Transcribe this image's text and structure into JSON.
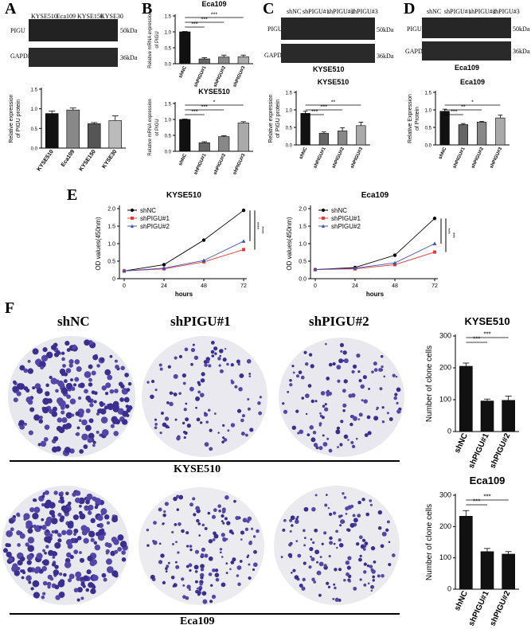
{
  "panels": {
    "A": "A",
    "B": "B",
    "C": "C",
    "D": "D",
    "E": "E",
    "F": "F"
  },
  "A": {
    "lanes": [
      "KYSE510",
      "Eca109",
      "KYSE150",
      "KYSE30"
    ],
    "rows": [
      {
        "name": "PIGU",
        "size": "50kDa"
      },
      {
        "name": "GAPDH",
        "size": "36kDa"
      }
    ]
  },
  "C": {
    "lanes": [
      "shNC",
      "shPIGU#1",
      "shPIGU#2",
      "shPIGU#3"
    ],
    "rows": [
      {
        "name": "PIGU",
        "size": "50kDa"
      },
      {
        "name": "GAPDH",
        "size": "36kDa"
      }
    ],
    "cell": "KYSE510"
  },
  "D": {
    "lanes": [
      "shNC",
      "shPIGU#1",
      "shPIGU#2",
      "shPIGU#3"
    ],
    "rows": [
      {
        "name": "PIGU",
        "size": "50kDa"
      },
      {
        "name": "GAPDH",
        "size": "36kDa"
      }
    ],
    "cell": "Eca109"
  },
  "F": {
    "cols": [
      "shNC",
      "shPIGU#1",
      "shPIGU#2"
    ],
    "rows": [
      "KYSE510",
      "Eca109"
    ]
  },
  "chart_data": [
    {
      "id": "A",
      "type": "bar",
      "categories": [
        "KYSE510",
        "Eca109",
        "KYSE150",
        "KYSE30"
      ],
      "values": [
        0.88,
        0.97,
        0.62,
        0.7
      ],
      "errors": [
        0.06,
        0.05,
        0.03,
        0.12
      ],
      "ylabel": "Relative expression of PIGU protein",
      "ylim": [
        0,
        1.5
      ],
      "yticks": [
        0,
        0.5,
        1.0,
        1.5
      ],
      "colors": [
        "#111111",
        "#888888",
        "#555555",
        "#bbbbbb"
      ]
    },
    {
      "id": "B1",
      "type": "bar",
      "title": "Eca109",
      "categories": [
        "shNC",
        "shPIGU#1",
        "shPIGU#2",
        "shPIGU#3"
      ],
      "values": [
        1.0,
        0.15,
        0.21,
        0.22
      ],
      "errors": [
        0.01,
        0.04,
        0.06,
        0.05
      ],
      "ylabel": "Relative mRNA expression of PIGU",
      "ylim": [
        0,
        1.5
      ],
      "yticks": [
        0,
        0.5,
        1.0,
        1.5
      ],
      "colors": [
        "#111111",
        "#666666",
        "#888888",
        "#aaaaaa"
      ],
      "sig": [
        "***",
        "***",
        "***"
      ]
    },
    {
      "id": "B2",
      "type": "bar",
      "title": "KYSE510",
      "categories": [
        "shNC",
        "shPIGU#1",
        "shPIGU#2",
        "shPIGU#3"
      ],
      "values": [
        1.0,
        0.27,
        0.46,
        0.89
      ],
      "errors": [
        0.01,
        0.03,
        0.03,
        0.04
      ],
      "ylabel": "Relative mRNA expression of PIGU",
      "ylim": [
        0,
        1.5
      ],
      "yticks": [
        0,
        0.5,
        1.0,
        1.5
      ],
      "colors": [
        "#111111",
        "#666666",
        "#888888",
        "#aaaaaa"
      ],
      "sig": [
        "***",
        "***",
        "*"
      ]
    },
    {
      "id": "C",
      "type": "bar",
      "title": "KYSE510",
      "categories": [
        "shNC",
        "shPIGU#1",
        "shPIGU#2",
        "shPIGU#3"
      ],
      "values": [
        0.9,
        0.33,
        0.4,
        0.55
      ],
      "errors": [
        0.06,
        0.04,
        0.09,
        0.1
      ],
      "ylabel": "Relative expression of PIGU protein",
      "ylim": [
        0,
        1.5
      ],
      "yticks": [
        0,
        0.5,
        1.0,
        1.5
      ],
      "colors": [
        "#111111",
        "#666666",
        "#888888",
        "#aaaaaa"
      ],
      "sig": [
        "***",
        "***",
        "**"
      ]
    },
    {
      "id": "D",
      "type": "bar",
      "title": "Eca109",
      "categories": [
        "shNC",
        "shPIGU#1",
        "shPIGU#2",
        "shPIGU#3"
      ],
      "values": [
        0.96,
        0.58,
        0.65,
        0.77
      ],
      "errors": [
        0.06,
        0.03,
        0.02,
        0.08
      ],
      "ylabel": "Relative Expression of Protein",
      "ylim": [
        0,
        1.5
      ],
      "yticks": [
        0,
        0.5,
        1.0,
        1.5
      ],
      "colors": [
        "#111111",
        "#666666",
        "#888888",
        "#aaaaaa"
      ],
      "sig": [
        "***",
        "**",
        "*"
      ]
    },
    {
      "id": "E1",
      "type": "line",
      "title": "KYSE510",
      "x": [
        0,
        24,
        48,
        72
      ],
      "xlabel": "hours",
      "ylabel": "OD values(450nm)",
      "ylim": [
        0,
        2.0
      ],
      "yticks": [
        0,
        0.5,
        1.0,
        1.5,
        2.0
      ],
      "ytick_labels": [
        "0",
        "0.5",
        "1.0",
        "1.5",
        "2.0"
      ],
      "series": [
        {
          "name": "shNC",
          "values": [
            0.22,
            0.4,
            1.1,
            1.95
          ],
          "color": "#000000",
          "marker": "circle"
        },
        {
          "name": "shPIGU#1",
          "values": [
            0.22,
            0.28,
            0.48,
            0.83
          ],
          "color": "#e53935",
          "marker": "square"
        },
        {
          "name": "shPIGU#2",
          "values": [
            0.22,
            0.3,
            0.52,
            1.07
          ],
          "color": "#3f51b5",
          "marker": "triangle"
        }
      ],
      "sig": [
        "****",
        "****"
      ]
    },
    {
      "id": "E2",
      "type": "line",
      "title": "Eca109",
      "x": [
        0,
        24,
        48,
        72
      ],
      "xlabel": "hours",
      "ylabel": "OD values(450nm)",
      "ylim": [
        0,
        2.0
      ],
      "yticks": [
        0,
        0.5,
        1.0,
        1.5,
        2.0
      ],
      "ytick_labels": [
        "0.0",
        "0.5",
        "1.0",
        "1.5",
        "2.0"
      ],
      "series": [
        {
          "name": "shNC",
          "values": [
            0.26,
            0.32,
            0.67,
            1.72
          ],
          "color": "#000000",
          "marker": "circle"
        },
        {
          "name": "shPIGU#1",
          "values": [
            0.26,
            0.28,
            0.4,
            0.76
          ],
          "color": "#e53935",
          "marker": "square"
        },
        {
          "name": "shPIGU#2",
          "values": [
            0.26,
            0.3,
            0.45,
            1.0
          ],
          "color": "#3f51b5",
          "marker": "triangle"
        }
      ],
      "sig": [
        "***",
        "***"
      ]
    },
    {
      "id": "F1",
      "type": "bar",
      "title": "KYSE510",
      "categories": [
        "shNC",
        "shPIGU#1",
        "shPIGU#2"
      ],
      "values": [
        205,
        96,
        98
      ],
      "errors": [
        10,
        6,
        13
      ],
      "ylabel": "Number of clone cells",
      "ylim": [
        0,
        300
      ],
      "yticks": [
        0,
        100,
        200,
        300
      ],
      "colors": [
        "#111111",
        "#111111",
        "#111111"
      ],
      "sig": [
        "***",
        "***"
      ]
    },
    {
      "id": "F2",
      "type": "bar",
      "title": "Eca109",
      "categories": [
        "shNC",
        "shPIGU#1",
        "shPIGU#2"
      ],
      "values": [
        233,
        120,
        112
      ],
      "errors": [
        18,
        10,
        8
      ],
      "ylabel": "Number of clone cells",
      "ylim": [
        0,
        300
      ],
      "yticks": [
        0,
        100,
        200,
        300
      ],
      "colors": [
        "#111111",
        "#111111",
        "#111111"
      ],
      "sig": [
        "***",
        "***"
      ]
    }
  ]
}
